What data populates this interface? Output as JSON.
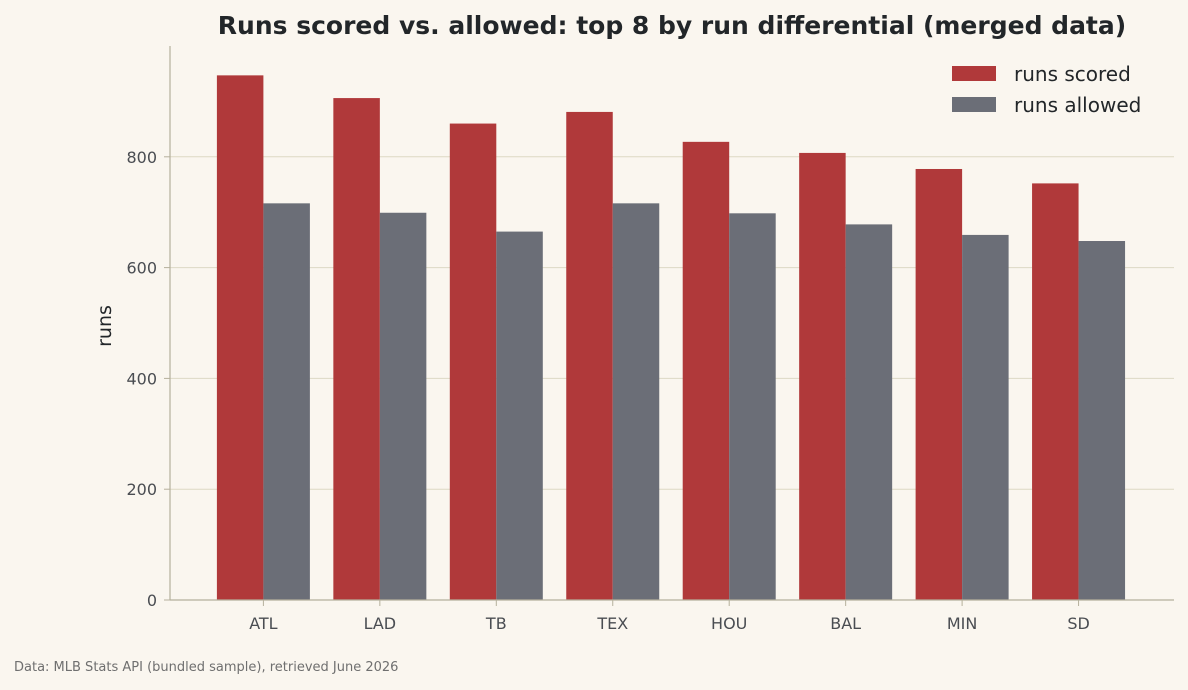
{
  "colors": {
    "background": "#faf6ef",
    "grid": "#ddd8c4",
    "axis": "#b5b09c",
    "runs_scored": "#b0393a",
    "runs_allowed": "#6b6e77"
  },
  "footer": {
    "source": "Data: MLB Stats API (bundled sample), retrieved June 2026"
  },
  "chart_data": {
    "type": "bar",
    "title": "Runs scored vs. allowed: top 8 by run differential (merged data)",
    "xlabel": "",
    "ylabel": "runs",
    "ylim": [
      0,
      1000
    ],
    "yticks": [
      0,
      200,
      400,
      600,
      800
    ],
    "grid": true,
    "legend_position": "top-right",
    "categories": [
      "ATL",
      "LAD",
      "TB",
      "TEX",
      "HOU",
      "BAL",
      "MIN",
      "SD"
    ],
    "series": [
      {
        "name": "runs scored",
        "color_key": "runs_scored",
        "values": [
          947,
          906,
          860,
          881,
          827,
          807,
          778,
          752
        ]
      },
      {
        "name": "runs allowed",
        "color_key": "runs_allowed",
        "values": [
          716,
          699,
          665,
          716,
          698,
          678,
          659,
          648
        ]
      }
    ]
  }
}
